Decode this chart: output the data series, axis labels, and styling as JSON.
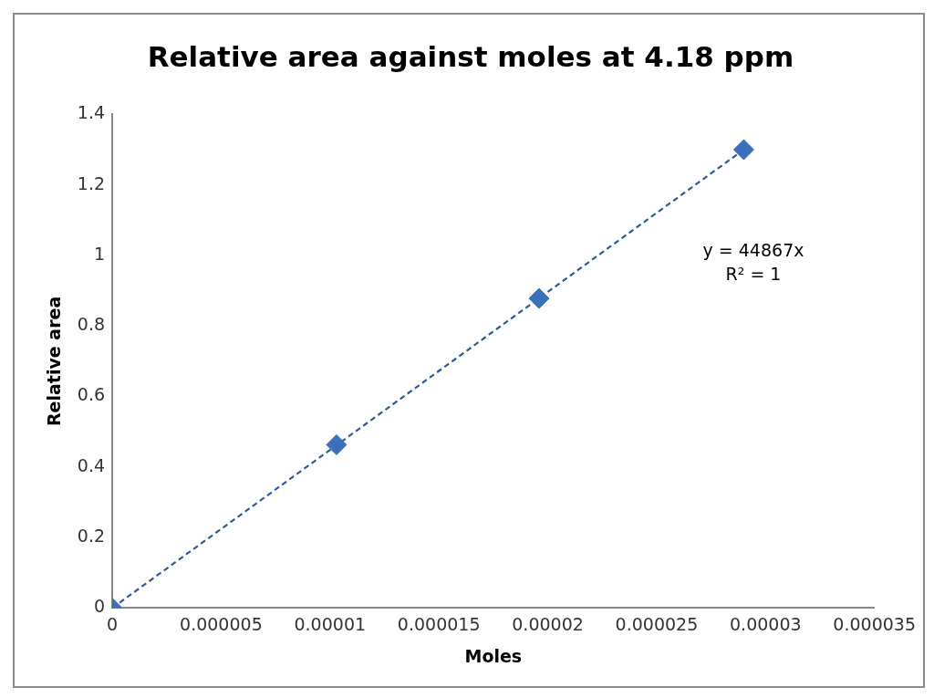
{
  "chart_data": {
    "type": "scatter",
    "title": "Relative area against moles at 4.18 ppm",
    "xlabel": "Moles",
    "ylabel": "Relative area",
    "annotations": [
      "y = 44867x",
      "R² = 1"
    ],
    "series": [
      {
        "type": "scatter",
        "color": "#3a6fba",
        "x": [
          0,
          1.03e-05,
          1.96e-05,
          2.9e-05
        ],
        "values": [
          0,
          0.463,
          0.878,
          1.3
        ],
        "marker": "diamond"
      },
      {
        "type": "line",
        "color": "#2f5a94",
        "x": [
          0,
          2.9e-05
        ],
        "values": [
          0,
          1.3
        ],
        "line_style": "dashed",
        "marker": "none"
      }
    ],
    "xlim": [
      0,
      3.5e-05
    ],
    "xticks": [
      0,
      {
        "value": 5e-06,
        "label": "0.000005"
      },
      {
        "value": 1e-05,
        "label": "0.00001"
      },
      {
        "value": 1.5e-05,
        "label": "0.000015"
      },
      {
        "value": 2e-05,
        "label": "0.00002"
      },
      {
        "value": 2.5e-05,
        "label": "0.000025"
      },
      {
        "value": 3e-05,
        "label": "0.00003"
      },
      {
        "value": 3.5e-05,
        "label": "0.000035"
      }
    ],
    "ylim": [
      0,
      1.4
    ],
    "yticks": [
      0,
      0.2,
      0.4,
      0.6,
      0.8,
      1,
      1.2,
      1.4
    ],
    "grid": false,
    "legend": false
  }
}
